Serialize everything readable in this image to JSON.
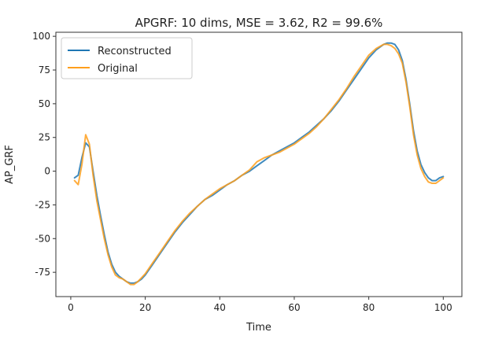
{
  "chart_data": {
    "type": "line",
    "title": "APGRF: 10 dims, MSE = 3.62, R2 = 99.6%",
    "xlabel": "Time",
    "ylabel": "AP_GRF",
    "xlim": [
      -4,
      105
    ],
    "ylim": [
      -93,
      103
    ],
    "xticks": [
      0,
      20,
      40,
      60,
      80,
      100
    ],
    "yticks": [
      -75,
      -50,
      -25,
      0,
      25,
      50,
      75,
      100
    ],
    "grid": false,
    "legend_position": "top-left",
    "series": [
      {
        "name": "Reconstructed",
        "color": "#1f77b4",
        "x": [
          1,
          2,
          3,
          4,
          5,
          6,
          7,
          8,
          9,
          10,
          11,
          12,
          13,
          14,
          15,
          16,
          17,
          18,
          19,
          20,
          22,
          24,
          26,
          28,
          30,
          32,
          34,
          36,
          38,
          40,
          42,
          44,
          46,
          48,
          50,
          52,
          54,
          56,
          58,
          60,
          62,
          64,
          66,
          68,
          70,
          72,
          74,
          76,
          78,
          80,
          82,
          84,
          85,
          86,
          87,
          88,
          89,
          90,
          91,
          92,
          93,
          94,
          95,
          96,
          97,
          98,
          99,
          100
        ],
        "y": [
          -5,
          -3,
          10,
          21,
          18,
          0,
          -18,
          -33,
          -47,
          -60,
          -69,
          -75,
          -78,
          -80,
          -82,
          -83,
          -83,
          -82,
          -80,
          -77,
          -69,
          -61,
          -53,
          -45,
          -38,
          -32,
          -26,
          -21,
          -18,
          -14,
          -10,
          -7,
          -3,
          0,
          4,
          8,
          12,
          15,
          18,
          21,
          25,
          29,
          34,
          39,
          45,
          52,
          60,
          68,
          76,
          84,
          90,
          94,
          95,
          95,
          94,
          90,
          82,
          68,
          50,
          30,
          15,
          5,
          -1,
          -5,
          -7,
          -7,
          -5,
          -4
        ]
      },
      {
        "name": "Original",
        "color": "#ff9f1c",
        "x": [
          1,
          2,
          3,
          4,
          5,
          6,
          7,
          8,
          9,
          10,
          11,
          12,
          13,
          14,
          15,
          16,
          17,
          18,
          19,
          20,
          22,
          24,
          26,
          28,
          30,
          32,
          34,
          36,
          38,
          40,
          42,
          44,
          46,
          48,
          50,
          52,
          54,
          56,
          58,
          60,
          62,
          64,
          66,
          68,
          70,
          72,
          74,
          76,
          78,
          80,
          82,
          84,
          85,
          86,
          87,
          88,
          89,
          90,
          91,
          92,
          93,
          94,
          95,
          96,
          97,
          98,
          99,
          100
        ],
        "y": [
          -7,
          -10,
          5,
          27,
          20,
          -3,
          -22,
          -36,
          -50,
          -62,
          -71,
          -77,
          -79,
          -80,
          -82,
          -84,
          -84,
          -82,
          -79,
          -76,
          -68,
          -60,
          -52,
          -44,
          -37,
          -31,
          -26,
          -21,
          -17,
          -13,
          -10,
          -7,
          -3,
          1,
          7,
          10,
          12,
          14,
          17,
          20,
          24,
          28,
          33,
          39,
          46,
          53,
          61,
          70,
          78,
          86,
          91,
          94,
          94,
          93,
          91,
          87,
          80,
          66,
          48,
          27,
          12,
          2,
          -4,
          -8,
          -9,
          -9,
          -7,
          -5
        ]
      }
    ]
  }
}
